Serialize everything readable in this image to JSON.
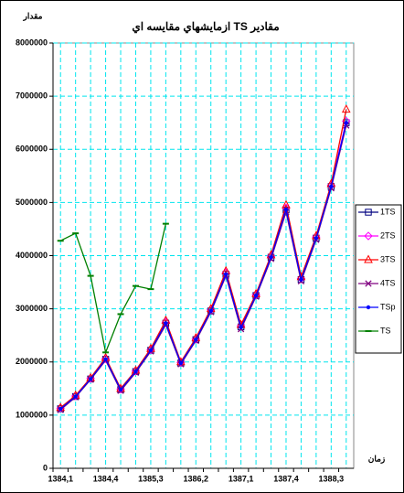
{
  "chart_data": {
    "type": "line",
    "title": "مقادير TS ازمايشهاي مقايسه اي",
    "y_label": "مقدار",
    "x_label": "زمان",
    "categories": [
      "1384,1",
      null,
      null,
      "1384,4",
      null,
      null,
      "1385,3",
      null,
      null,
      "1386,2",
      null,
      null,
      "1387,1",
      null,
      null,
      "1387,4",
      null,
      null,
      "1388,3",
      null
    ],
    "ylim": [
      0,
      8000000
    ],
    "yticks": [
      0,
      1000000,
      2000000,
      3000000,
      4000000,
      5000000,
      6000000,
      7000000,
      8000000
    ],
    "grid": true,
    "legend": "right",
    "series": [
      {
        "name": "1TS",
        "color": "#000080",
        "marker": "square",
        "values": [
          1120000,
          1350000,
          1680000,
          2050000,
          1480000,
          1820000,
          2220000,
          2730000,
          1980000,
          2420000,
          2960000,
          3650000,
          2660000,
          3250000,
          3970000,
          4860000,
          3550000,
          4330000,
          5300000,
          6500000
        ]
      },
      {
        "name": "2TS",
        "color": "#ff00ff",
        "marker": "diamond",
        "values": [
          1130000,
          1360000,
          1690000,
          2060000,
          1490000,
          1830000,
          2230000,
          2750000,
          1990000,
          2430000,
          2980000,
          3680000,
          2680000,
          3260000,
          3990000,
          4900000,
          3570000,
          4350000,
          5320000,
          6530000
        ]
      },
      {
        "name": "3TS",
        "color": "#ff0000",
        "marker": "triangle",
        "values": [
          1140000,
          1370000,
          1700000,
          2080000,
          1500000,
          1840000,
          2250000,
          2780000,
          2000000,
          2450000,
          3000000,
          3710000,
          2700000,
          3280000,
          4010000,
          4950000,
          3600000,
          4370000,
          5350000,
          6750000
        ]
      },
      {
        "name": "4TS",
        "color": "#800080",
        "marker": "x",
        "values": [
          1100000,
          1340000,
          1670000,
          2030000,
          1460000,
          1800000,
          2200000,
          2700000,
          1960000,
          2400000,
          2940000,
          3620000,
          2620000,
          3230000,
          3940000,
          4820000,
          3520000,
          4300000,
          5270000,
          6450000
        ]
      },
      {
        "name": "TSp",
        "color": "#0000ff",
        "marker": "dot",
        "values": [
          1120000,
          1350000,
          1680000,
          2050000,
          1480000,
          1820000,
          2220000,
          2730000,
          1980000,
          2420000,
          2960000,
          3650000,
          2650000,
          3250000,
          3970000,
          4870000,
          3550000,
          4330000,
          5300000,
          6500000
        ]
      },
      {
        "name": "TS",
        "color": "#008000",
        "marker": "dash",
        "values": [
          4280000,
          4420000,
          3620000,
          2180000,
          2900000,
          3430000,
          3370000,
          4600000,
          null,
          null,
          null,
          null,
          null,
          null,
          null,
          null,
          null,
          null,
          null,
          null
        ]
      }
    ]
  }
}
